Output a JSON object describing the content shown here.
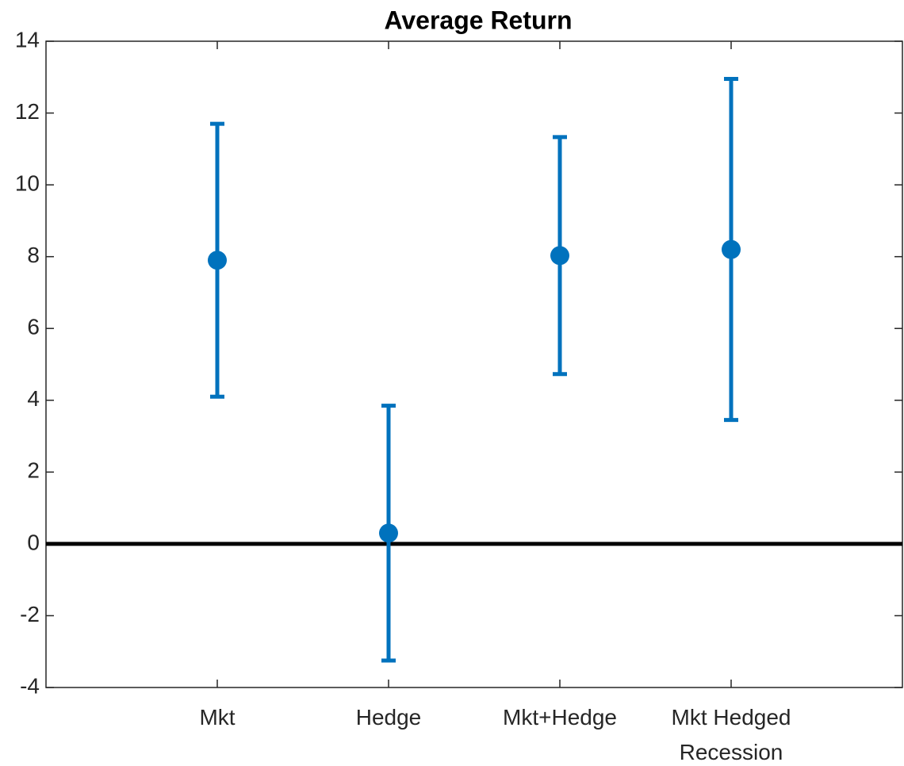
{
  "chart_data": {
    "type": "errorbar",
    "title": "Average Return",
    "categories": [
      "Mkt",
      "Hedge",
      "Mkt+Hedge",
      "Mkt Hedged\nRecession"
    ],
    "values": [
      7.9,
      0.3,
      8.03,
      8.2
    ],
    "errors": [
      3.8,
      3.55,
      3.3,
      4.75
    ],
    "color": "#0072bd",
    "xlim": [
      0,
      5
    ],
    "ylim": [
      -4,
      14
    ],
    "yticks": [
      -4,
      -2,
      0,
      2,
      4,
      6,
      8,
      10,
      12,
      14
    ],
    "reference_line": 0,
    "reference_color": "#000000"
  }
}
